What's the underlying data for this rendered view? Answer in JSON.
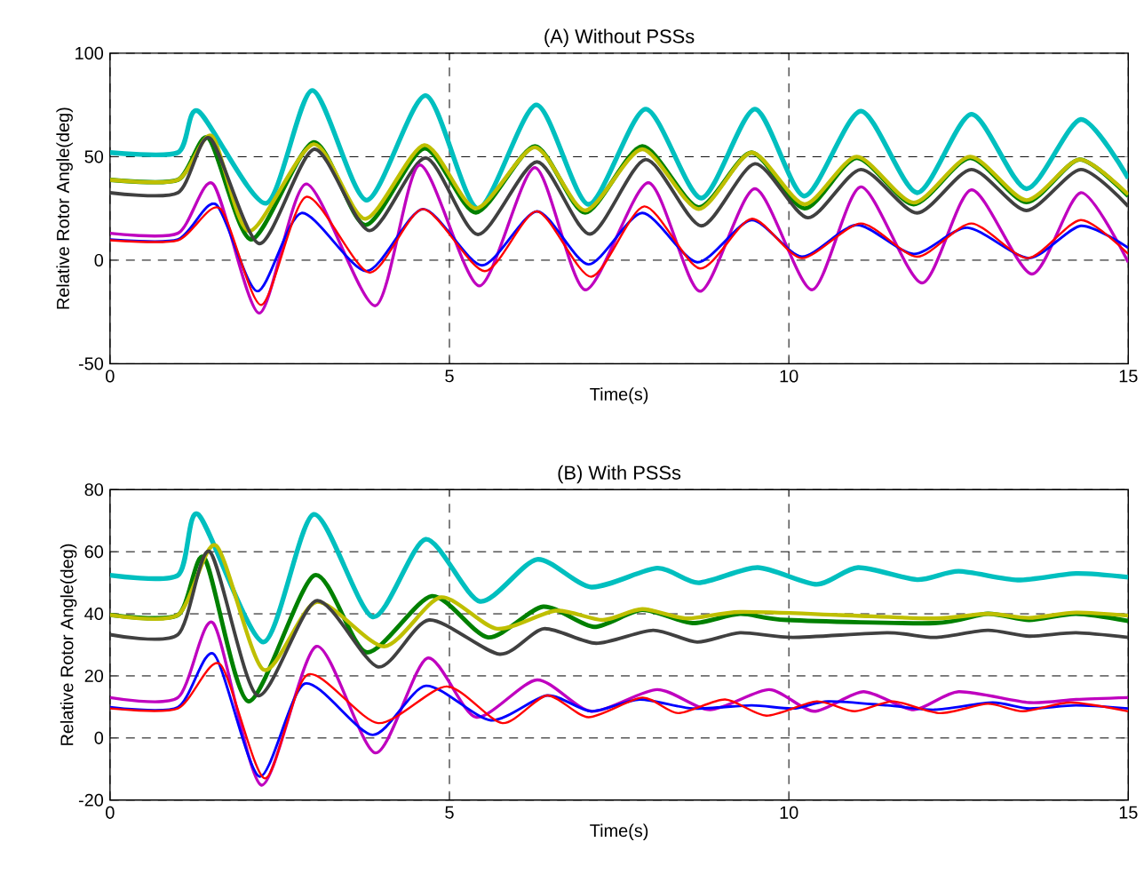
{
  "chart_data": [
    {
      "type": "line",
      "title": "(A) Without PSSs",
      "xlabel": "Time(s)",
      "ylabel": "Relative Rotor Angle(deg)",
      "xlim": [
        0,
        15
      ],
      "ylim": [
        -50,
        100
      ],
      "xticks": [
        0,
        5,
        10,
        15
      ],
      "yticks": [
        -50,
        0,
        50,
        100
      ],
      "grid": true,
      "line_style": "solid",
      "series": [
        {
          "color": "#00bfbf",
          "x": [
            0,
            1,
            1.3,
            2.3,
            2.98,
            3.78,
            4.65,
            5.42,
            6.28,
            7.05,
            7.89,
            8.71,
            9.5,
            10.23,
            11.06,
            11.89,
            12.69,
            13.5,
            14.3,
            15
          ],
          "values": [
            52,
            52,
            72,
            27.5,
            82,
            29,
            79.5,
            25,
            75,
            27,
            73,
            30,
            73,
            31,
            72,
            32.6,
            70.5,
            34.5,
            68,
            39.6
          ]
        },
        {
          "color": "#008000",
          "x": [
            0,
            1,
            1.45,
            2.08,
            3.0,
            3.76,
            4.63,
            5.39,
            6.26,
            7.0,
            7.84,
            8.67,
            9.45,
            10.23,
            11.0,
            11.84,
            12.67,
            13.5,
            14.28,
            15
          ],
          "values": [
            38.8,
            38.8,
            59,
            10,
            57,
            17,
            54,
            23,
            55,
            23,
            55,
            25.5,
            52,
            25,
            49.4,
            27,
            49.4,
            28,
            48.6,
            31
          ]
        },
        {
          "color": "#bfbf00",
          "x": [
            0,
            1,
            1.5,
            2.05,
            3.0,
            3.76,
            4.63,
            5.39,
            6.26,
            7.0,
            7.84,
            8.67,
            9.45,
            10.23,
            11.0,
            11.84,
            12.67,
            13.5,
            14.28,
            15
          ],
          "values": [
            38.8,
            38.8,
            60,
            14,
            56,
            20,
            55.6,
            25,
            54.5,
            24,
            53.6,
            24.7,
            52,
            27,
            50,
            27.8,
            50,
            29,
            48.6,
            31.7
          ]
        },
        {
          "color": "#404040",
          "x": [
            0,
            1,
            1.47,
            2.2,
            3.01,
            3.82,
            4.65,
            5.42,
            6.29,
            7.07,
            7.89,
            8.71,
            9.5,
            10.28,
            11.06,
            11.89,
            12.69,
            13.5,
            14.3,
            15
          ],
          "values": [
            32.6,
            32.6,
            59,
            8,
            53.6,
            14.3,
            49.4,
            12.4,
            47.5,
            12.6,
            48.6,
            16.6,
            46.6,
            20.5,
            43.8,
            22.8,
            43.8,
            24,
            43.8,
            26
          ]
        },
        {
          "color": "#bf00bf",
          "x": [
            0,
            1,
            1.52,
            2.2,
            2.89,
            3.91,
            4.56,
            5.44,
            6.26,
            7.0,
            7.93,
            8.69,
            9.5,
            10.34,
            11.06,
            11.96,
            12.69,
            13.58,
            14.3,
            15
          ],
          "values": [
            13,
            13,
            36.8,
            -25.6,
            36.8,
            -22,
            46,
            -12.4,
            44.7,
            -14.3,
            37.4,
            -15,
            34.5,
            -14.3,
            35.4,
            -11,
            34,
            -6.7,
            32.6,
            -1
          ]
        },
        {
          "color": "#0000ff",
          "x": [
            0,
            1,
            1.56,
            2.17,
            2.82,
            3.78,
            4.61,
            5.48,
            6.29,
            7.05,
            7.84,
            8.65,
            9.45,
            10.19,
            11.0,
            11.84,
            12.63,
            13.54,
            14.3,
            15
          ],
          "values": [
            10,
            10,
            27,
            -15,
            22.8,
            -5.3,
            24.7,
            -2.5,
            23.6,
            -2,
            22.8,
            -1,
            19.4,
            1.7,
            17,
            3,
            15.7,
            1,
            16.6,
            6
          ]
        },
        {
          "color": "#ff0000",
          "x": [
            0,
            1,
            1.62,
            2.23,
            2.89,
            3.82,
            4.61,
            5.52,
            6.29,
            7.09,
            7.87,
            8.69,
            9.45,
            10.19,
            11.06,
            11.89,
            12.69,
            13.52,
            14.3,
            15
          ],
          "values": [
            9.6,
            9.6,
            25,
            -21.6,
            30.6,
            -6,
            24.7,
            -5.3,
            23.6,
            -8,
            26,
            -4,
            20,
            1,
            17.7,
            1.7,
            17.7,
            1,
            19.4,
            3
          ]
        }
      ]
    },
    {
      "type": "line",
      "title": "(B) With PSSs",
      "xlabel": "Time(s)",
      "ylabel": "Relative Rotor Angle(deg)",
      "xlim": [
        0,
        15
      ],
      "ylim": [
        -20,
        80
      ],
      "xticks": [
        0,
        5,
        10,
        15
      ],
      "yticks": [
        -20,
        0,
        20,
        40,
        60,
        80
      ],
      "grid": true,
      "line_style": "solid",
      "series": [
        {
          "color": "#00bfbf",
          "x": [
            0,
            1,
            1.3,
            2.26,
            3.0,
            3.87,
            4.65,
            5.45,
            6.29,
            7.09,
            8.06,
            8.67,
            9.54,
            10.41,
            11.02,
            11.89,
            12.5,
            13.37,
            14.23,
            15
          ],
          "values": [
            52.4,
            52.4,
            72,
            30.9,
            72,
            39,
            64,
            44,
            57.5,
            48.6,
            54.7,
            50,
            54.9,
            49.5,
            54.9,
            51,
            53.7,
            50.9,
            53,
            51.8
          ]
        },
        {
          "color": "#008000",
          "x": [
            0,
            1,
            1.39,
            2.04,
            3.01,
            3.78,
            4.74,
            5.57,
            6.38,
            7.13,
            7.84,
            8.58,
            9.28,
            9.97,
            12.15,
            12.93,
            13.54,
            14.23,
            15
          ],
          "values": [
            39.6,
            39.6,
            58,
            11.8,
            52.4,
            27.6,
            45.7,
            32.4,
            42.3,
            35.8,
            41.3,
            37,
            40,
            38,
            37,
            40,
            38,
            40,
            37.7
          ]
        },
        {
          "color": "#bfbf00",
          "x": [
            0,
            1,
            1.56,
            2.26,
            3.04,
            4.04,
            4.87,
            5.7,
            6.57,
            7.26,
            7.84,
            8.5,
            9.28,
            10.76,
            12.15,
            12.93,
            13.54,
            14.23,
            15
          ],
          "values": [
            39.6,
            39.6,
            62,
            22,
            43.8,
            29.5,
            45.3,
            35.2,
            41,
            38,
            41.5,
            38.5,
            40.6,
            39.6,
            38.5,
            40,
            38.7,
            40.4,
            39.4
          ]
        },
        {
          "color": "#404040",
          "x": [
            0,
            1,
            1.47,
            2.17,
            3.04,
            3.95,
            4.7,
            5.74,
            6.39,
            7.16,
            8.0,
            8.65,
            9.28,
            10.06,
            11.45,
            12.15,
            12.93,
            13.54,
            14.23,
            15
          ],
          "values": [
            33.3,
            33.3,
            60,
            13.7,
            44.2,
            22.9,
            38,
            27,
            35.2,
            30.5,
            34.7,
            30.9,
            33.9,
            32.4,
            33.9,
            32.4,
            34.7,
            32.8,
            33.9,
            32.4
          ]
        },
        {
          "color": "#bf00bf",
          "x": [
            0,
            1,
            1.52,
            2.23,
            3.04,
            3.91,
            4.67,
            5.39,
            6.29,
            7.09,
            8.06,
            8.84,
            9.71,
            10.37,
            11.1,
            11.84,
            12.5,
            13.54,
            14.23,
            15
          ],
          "values": [
            13,
            13,
            37,
            -15.2,
            29.5,
            -4.8,
            25.7,
            6.7,
            18.7,
            8.6,
            15.6,
            9.1,
            15.6,
            8.6,
            14.9,
            9.1,
            14.9,
            11.4,
            12.4,
            13
          ]
        },
        {
          "color": "#0000ff",
          "x": [
            0,
            1,
            1.53,
            2.2,
            2.87,
            3.87,
            4.65,
            5.61,
            6.44,
            7.09,
            7.8,
            8.58,
            9.45,
            10.06,
            10.58,
            11.45,
            12.15,
            13.0,
            13.54,
            14.23,
            15
          ],
          "values": [
            9.9,
            9.9,
            27,
            -12.4,
            17.5,
            1,
            16.8,
            5.7,
            13.7,
            8.6,
            12.4,
            9.5,
            10.5,
            9.5,
            11.8,
            10.5,
            9.1,
            11.4,
            9.5,
            10.5,
            9.5
          ]
        },
        {
          "color": "#ff0000",
          "x": [
            0,
            1,
            1.62,
            2.28,
            2.91,
            3.95,
            4.96,
            5.78,
            6.44,
            7.05,
            7.84,
            8.37,
            9.06,
            9.67,
            10.41,
            10.97,
            11.54,
            12.23,
            12.93,
            13.45,
            14.15,
            15
          ],
          "values": [
            9.5,
            9.5,
            23.8,
            -13,
            20.4,
            4.8,
            16.6,
            4.8,
            13.7,
            6.7,
            13,
            8,
            12.4,
            7.2,
            11.8,
            8.6,
            11.8,
            8,
            11,
            8.6,
            11.4,
            8.6
          ]
        }
      ]
    }
  ]
}
